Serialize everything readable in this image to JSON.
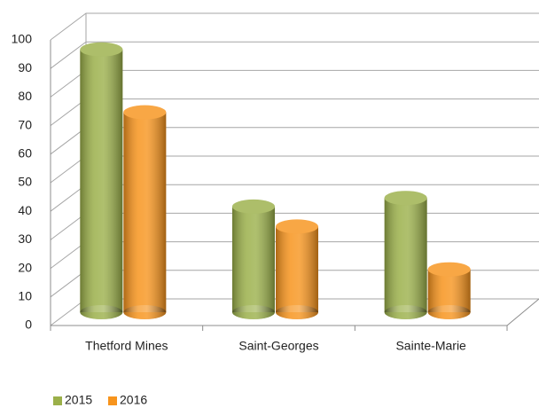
{
  "chart_data": {
    "type": "bar3d",
    "categories": [
      "Thetford Mines",
      "Saint-Georges",
      "Sainte-Marie"
    ],
    "series": [
      {
        "name": "2015",
        "color": "#9bb04a",
        "values": [
          92,
          37,
          40
        ]
      },
      {
        "name": "2016",
        "color": "#f7941d",
        "values": [
          70,
          30,
          15
        ]
      }
    ],
    "ylim": [
      0,
      100
    ],
    "yticks": [
      0,
      10,
      20,
      30,
      40,
      50,
      60,
      70,
      80,
      90,
      100
    ],
    "grid": true,
    "legend": "bottom-left"
  }
}
